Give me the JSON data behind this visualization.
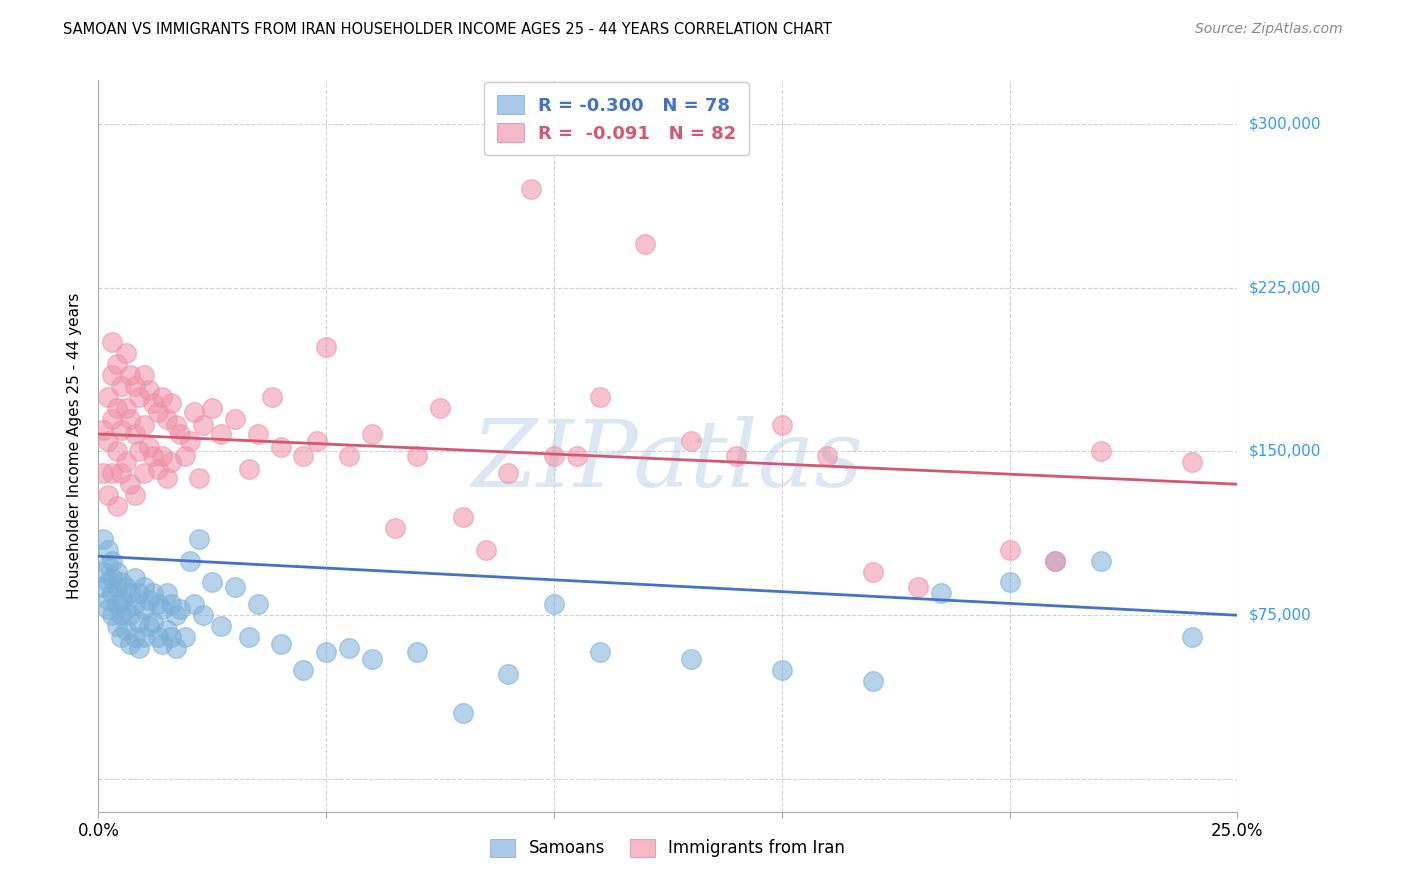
{
  "title": "SAMOAN VS IMMIGRANTS FROM IRAN HOUSEHOLDER INCOME AGES 25 - 44 YEARS CORRELATION CHART",
  "source": "Source: ZipAtlas.com",
  "ylabel": "Householder Income Ages 25 - 44 years",
  "xlim": [
    0.0,
    0.25
  ],
  "ylim": [
    -15000,
    320000
  ],
  "ytick_vals": [
    0,
    75000,
    150000,
    225000,
    300000
  ],
  "ytick_labels_right": [
    "",
    "$75,000",
    "$150,000",
    "$225,000",
    "$300,000"
  ],
  "xtick_vals": [
    0.0,
    0.05,
    0.1,
    0.15,
    0.2,
    0.25
  ],
  "xtick_labels": [
    "0.0%",
    "",
    "",
    "",
    "",
    "25.0%"
  ],
  "blue_scatter_color": "#7ab0d8",
  "pink_scatter_color": "#f090a8",
  "blue_line_color": "#4472c4",
  "pink_line_color": "#d45870",
  "watermark": "ZIPatlas",
  "samoans_label": "Samoans",
  "iran_label": "Immigrants from Iran",
  "blue_patch_color": "#aac8e8",
  "pink_patch_color": "#f4b8c8",
  "samoans_x": [
    0.001,
    0.001,
    0.001,
    0.002,
    0.002,
    0.002,
    0.002,
    0.002,
    0.003,
    0.003,
    0.003,
    0.003,
    0.004,
    0.004,
    0.004,
    0.004,
    0.005,
    0.005,
    0.005,
    0.005,
    0.006,
    0.006,
    0.006,
    0.007,
    0.007,
    0.007,
    0.008,
    0.008,
    0.008,
    0.009,
    0.009,
    0.009,
    0.01,
    0.01,
    0.01,
    0.011,
    0.011,
    0.012,
    0.012,
    0.013,
    0.013,
    0.014,
    0.014,
    0.015,
    0.015,
    0.016,
    0.016,
    0.017,
    0.017,
    0.018,
    0.019,
    0.02,
    0.021,
    0.022,
    0.023,
    0.025,
    0.027,
    0.03,
    0.033,
    0.035,
    0.04,
    0.045,
    0.05,
    0.055,
    0.06,
    0.07,
    0.08,
    0.09,
    0.1,
    0.11,
    0.13,
    0.15,
    0.17,
    0.185,
    0.2,
    0.21,
    0.22,
    0.24
  ],
  "samoans_y": [
    110000,
    95000,
    88000,
    105000,
    98000,
    90000,
    82000,
    78000,
    100000,
    92000,
    85000,
    75000,
    95000,
    88000,
    80000,
    70000,
    90000,
    82000,
    75000,
    65000,
    88000,
    78000,
    68000,
    85000,
    75000,
    62000,
    92000,
    80000,
    65000,
    85000,
    72000,
    60000,
    88000,
    78000,
    65000,
    82000,
    70000,
    85000,
    72000,
    80000,
    65000,
    78000,
    62000,
    85000,
    68000,
    80000,
    65000,
    75000,
    60000,
    78000,
    65000,
    100000,
    80000,
    110000,
    75000,
    90000,
    70000,
    88000,
    65000,
    80000,
    62000,
    50000,
    58000,
    60000,
    55000,
    58000,
    30000,
    48000,
    80000,
    58000,
    55000,
    50000,
    45000,
    85000,
    90000,
    100000,
    100000,
    65000
  ],
  "iran_x": [
    0.001,
    0.001,
    0.002,
    0.002,
    0.002,
    0.003,
    0.003,
    0.003,
    0.003,
    0.004,
    0.004,
    0.004,
    0.004,
    0.005,
    0.005,
    0.005,
    0.006,
    0.006,
    0.006,
    0.007,
    0.007,
    0.007,
    0.008,
    0.008,
    0.008,
    0.009,
    0.009,
    0.01,
    0.01,
    0.01,
    0.011,
    0.011,
    0.012,
    0.012,
    0.013,
    0.013,
    0.014,
    0.014,
    0.015,
    0.015,
    0.016,
    0.016,
    0.017,
    0.018,
    0.019,
    0.02,
    0.021,
    0.022,
    0.023,
    0.025,
    0.027,
    0.03,
    0.033,
    0.035,
    0.038,
    0.04,
    0.045,
    0.048,
    0.05,
    0.055,
    0.06,
    0.065,
    0.07,
    0.075,
    0.08,
    0.085,
    0.09,
    0.1,
    0.11,
    0.12,
    0.13,
    0.14,
    0.15,
    0.16,
    0.17,
    0.18,
    0.2,
    0.21,
    0.22,
    0.24,
    0.095,
    0.105
  ],
  "iran_y": [
    160000,
    140000,
    175000,
    155000,
    130000,
    200000,
    185000,
    165000,
    140000,
    190000,
    170000,
    150000,
    125000,
    180000,
    160000,
    140000,
    195000,
    170000,
    145000,
    185000,
    165000,
    135000,
    180000,
    158000,
    130000,
    175000,
    150000,
    185000,
    162000,
    140000,
    178000,
    152000,
    172000,
    148000,
    168000,
    142000,
    175000,
    148000,
    165000,
    138000,
    172000,
    145000,
    162000,
    158000,
    148000,
    155000,
    168000,
    138000,
    162000,
    170000,
    158000,
    165000,
    142000,
    158000,
    175000,
    152000,
    148000,
    155000,
    198000,
    148000,
    158000,
    115000,
    148000,
    170000,
    120000,
    105000,
    140000,
    148000,
    175000,
    245000,
    155000,
    148000,
    162000,
    148000,
    95000,
    88000,
    105000,
    100000,
    150000,
    145000,
    270000,
    148000
  ]
}
